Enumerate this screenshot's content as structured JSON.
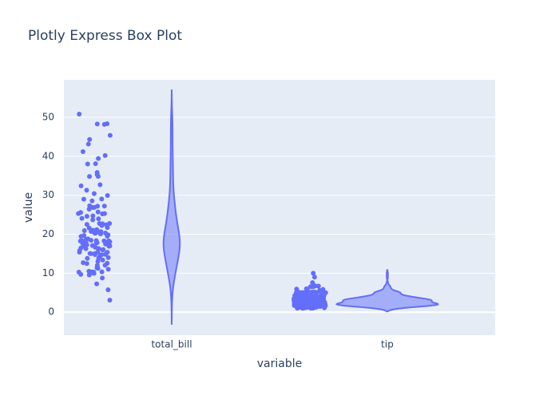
{
  "chart_data": {
    "type": "violin",
    "title": "Plotly Express Box Plot",
    "x_label": "variable",
    "y_label": "value",
    "color": "#636efa",
    "grid": true,
    "ylim": [
      -5.9,
      59.6
    ],
    "yticks": [
      0,
      10,
      20,
      30,
      40,
      50
    ],
    "series": [
      {
        "name": "total_bill",
        "values": [
          16.99,
          10.34,
          21.01,
          23.68,
          24.59,
          25.29,
          8.77,
          26.88,
          15.04,
          14.78,
          10.27,
          35.26,
          15.42,
          18.43,
          14.83,
          21.58,
          10.33,
          16.29,
          16.97,
          20.65,
          17.92,
          20.29,
          15.77,
          39.42,
          19.82,
          17.81,
          13.37,
          12.69,
          21.7,
          19.65,
          9.55,
          18.35,
          15.06,
          20.69,
          17.78,
          24.06,
          16.31,
          16.93,
          18.69,
          31.27,
          16.04,
          17.46,
          13.94,
          9.68,
          30.4,
          18.29,
          22.23,
          32.4,
          28.55,
          18.04,
          12.54,
          10.29,
          34.81,
          9.94,
          25.56,
          19.49,
          38.01,
          26.41,
          11.24,
          48.27,
          20.29,
          13.81,
          11.02,
          18.29,
          17.59,
          20.08,
          16.45,
          3.07,
          20.23,
          15.01,
          12.02,
          17.07,
          26.86,
          25.28,
          14.73,
          10.51,
          17.92,
          27.2,
          22.76,
          17.29,
          19.44,
          16.66,
          10.07,
          32.68,
          15.98,
          34.83,
          13.03,
          18.28,
          24.71,
          21.16,
          28.97,
          22.49,
          5.75,
          16.32,
          22.75,
          40.17,
          27.28,
          12.03,
          21.01,
          12.46,
          11.35,
          15.38,
          44.3,
          22.42,
          20.92,
          15.36,
          20.49,
          25.21,
          18.24,
          14.31,
          14.0,
          7.25,
          38.07,
          23.95,
          25.71,
          17.31,
          29.93,
          50.81,
          48.17,
          48.33,
          43.11,
          41.19,
          45.35,
          35.83,
          29.03,
          27.18,
          22.67,
          17.82,
          18.78
        ]
      },
      {
        "name": "tip",
        "values": [
          1.01,
          1.66,
          3.5,
          3.31,
          3.61,
          4.71,
          2.0,
          3.12,
          1.96,
          3.23,
          1.71,
          5.0,
          1.57,
          3.0,
          3.02,
          3.92,
          1.67,
          3.71,
          3.5,
          3.35,
          4.08,
          2.75,
          2.23,
          7.58,
          3.18,
          2.34,
          2.0,
          2.0,
          4.3,
          3.0,
          1.45,
          2.5,
          3.0,
          2.45,
          3.27,
          3.6,
          2.0,
          3.07,
          2.31,
          5.0,
          2.24,
          2.54,
          3.06,
          1.32,
          5.6,
          3.0,
          5.0,
          6.0,
          2.05,
          3.0,
          2.5,
          2.6,
          5.2,
          1.56,
          4.34,
          3.51,
          3.0,
          1.5,
          1.76,
          6.73,
          3.21,
          2.0,
          1.98,
          3.76,
          2.64,
          3.15,
          2.47,
          1.0,
          2.01,
          2.09,
          1.97,
          3.0,
          3.14,
          5.0,
          2.2,
          1.25,
          3.08,
          4.0,
          3.0,
          2.71,
          3.0,
          3.4,
          1.83,
          5.0,
          2.03,
          5.17,
          2.0,
          4.0,
          5.85,
          3.0,
          3.0,
          3.5,
          1.0,
          4.3,
          3.25,
          4.73,
          4.0,
          1.5,
          3.0,
          1.5,
          2.5,
          3.0,
          2.5,
          3.48,
          4.08,
          1.64,
          4.06,
          4.29,
          3.76,
          4.0,
          3.0,
          1.0,
          4.0,
          2.55,
          4.0,
          3.5,
          5.07,
          1.5,
          1.8,
          2.92,
          2.31,
          1.68,
          2.5,
          2.0,
          2.52,
          4.2,
          1.48,
          2.0,
          2.0,
          2.18,
          1.5,
          2.83,
          1.5,
          2.0,
          3.25,
          1.25,
          2.0,
          2.0,
          2.0,
          2.75,
          3.5,
          6.7,
          5.0,
          5.0,
          2.3,
          1.5,
          1.36,
          1.63,
          1.73,
          2.0,
          2.5,
          2.0,
          2.74,
          2.0,
          2.0,
          5.14,
          5.0,
          3.75,
          2.61,
          2.0,
          3.5,
          2.5,
          2.0,
          2.0,
          3.0,
          3.48,
          2.24,
          4.5,
          1.61,
          2.0,
          10.0,
          3.16,
          5.15,
          3.18,
          4.0,
          3.11,
          2.0,
          2.0,
          4.0,
          3.55,
          3.68,
          5.65,
          3.5,
          6.5,
          3.0,
          5.0,
          3.5,
          2.0,
          3.5,
          4.0,
          1.5,
          4.19,
          2.56,
          2.02,
          4.0,
          1.44,
          2.0,
          5.0,
          2.0,
          2.0,
          4.0,
          2.01,
          2.0,
          2.5,
          4.0,
          3.23,
          3.41,
          3.0,
          2.03,
          2.23,
          2.0,
          5.16,
          9.0,
          2.5,
          6.5,
          1.1,
          3.0,
          1.5,
          1.44,
          3.09,
          2.2,
          3.48,
          1.92,
          3.0,
          1.58,
          2.5,
          2.0,
          3.0,
          2.72,
          2.88,
          2.0,
          3.0,
          3.39,
          1.47,
          3.0,
          1.25,
          1.0,
          1.17,
          4.67,
          5.92,
          2.0,
          2.0,
          1.75,
          3.0
        ]
      }
    ]
  }
}
